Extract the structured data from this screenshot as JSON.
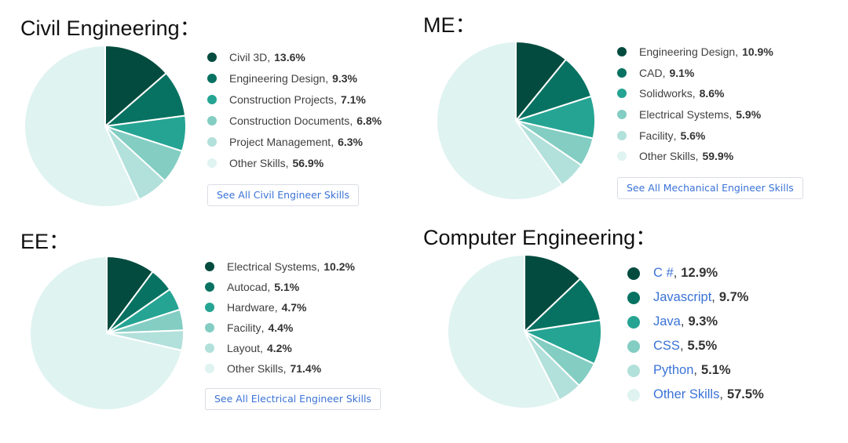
{
  "palette": [
    "#034b3f",
    "#087262",
    "#25a493",
    "#83cdc3",
    "#b2e0db",
    "#dff3f1"
  ],
  "chart_data": [
    {
      "type": "pie",
      "title": "Civil Engineering：",
      "categories": [
        "Civil 3D",
        "Engineering Design",
        "Construction Projects",
        "Construction Documents",
        "Project Management",
        "Other Skills"
      ],
      "values": [
        13.6,
        9.3,
        7.1,
        6.8,
        6.3,
        56.9
      ],
      "value_labels": [
        "13.6%",
        "9.3%",
        "7.1%",
        "6.8%",
        "6.3%",
        "56.9%"
      ],
      "legend": "right",
      "button": "See All Civil Engineer Skills"
    },
    {
      "type": "pie",
      "title": "ME：",
      "categories": [
        "Engineering Design",
        "CAD",
        "Solidworks",
        "Electrical Systems",
        "Facility",
        "Other Skills"
      ],
      "values": [
        10.9,
        9.1,
        8.6,
        5.9,
        5.6,
        59.9
      ],
      "value_labels": [
        "10.9%",
        "9.1%",
        "8.6%",
        "5.9%",
        "5.6%",
        "59.9%"
      ],
      "legend": "right",
      "button": "See All Mechanical Engineer Skills"
    },
    {
      "type": "pie",
      "title": "EE：",
      "categories": [
        "Electrical Systems",
        "Autocad",
        "Hardware",
        "Facility",
        "Layout",
        "Other Skills"
      ],
      "values": [
        10.2,
        5.1,
        4.7,
        4.4,
        4.2,
        71.4
      ],
      "value_labels": [
        "10.2%",
        "5.1%",
        "4.7%",
        "4.4%",
        "4.2%",
        "71.4%"
      ],
      "legend": "right",
      "button": "See All Electrical Engineer Skills"
    },
    {
      "type": "pie",
      "title": "Computer Engineering：",
      "categories": [
        "C #",
        "Javascript",
        "Java",
        "CSS",
        "Python",
        "Other Skills"
      ],
      "values": [
        12.9,
        9.7,
        9.3,
        5.5,
        5.1,
        57.5
      ],
      "value_labels": [
        "12.9%",
        "9.7%",
        "9.3%",
        "5.5%",
        "5.1%",
        "57.5%"
      ],
      "legend": "right",
      "linked_labels": true
    }
  ]
}
